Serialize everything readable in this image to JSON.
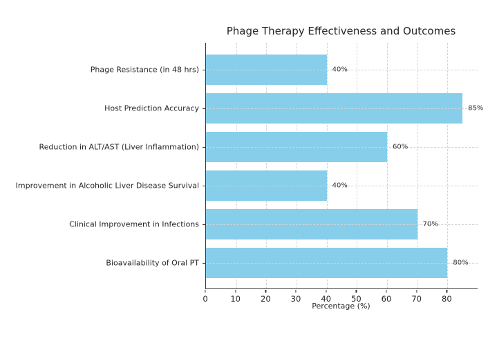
{
  "chart_data": {
    "type": "bar",
    "orientation": "horizontal",
    "title": "Phage Therapy Effectiveness and Outcomes",
    "xlabel": "Percentage (%)",
    "categories": [
      "Phage Resistance (in 48 hrs)",
      "Host Prediction Accuracy",
      "Reduction in ALT/AST (Liver Inflammation)",
      "Improvement in Alcoholic Liver Disease Survival",
      "Clinical Improvement in Infections",
      "Bioavailability of Oral PT"
    ],
    "values": [
      40,
      85,
      60,
      40,
      70,
      80
    ],
    "value_labels": [
      "40%",
      "85%",
      "60%",
      "40%",
      "70%",
      "80%"
    ],
    "xticks": [
      0,
      10,
      20,
      30,
      40,
      50,
      60,
      70,
      80
    ],
    "xlim": [
      0,
      90
    ],
    "grid": "dashed",
    "legend": "none",
    "bar_color": "#87CEEB",
    "gridline_color": "#d3d3d3",
    "text_color": "#262626",
    "axis_color": "#333333"
  }
}
